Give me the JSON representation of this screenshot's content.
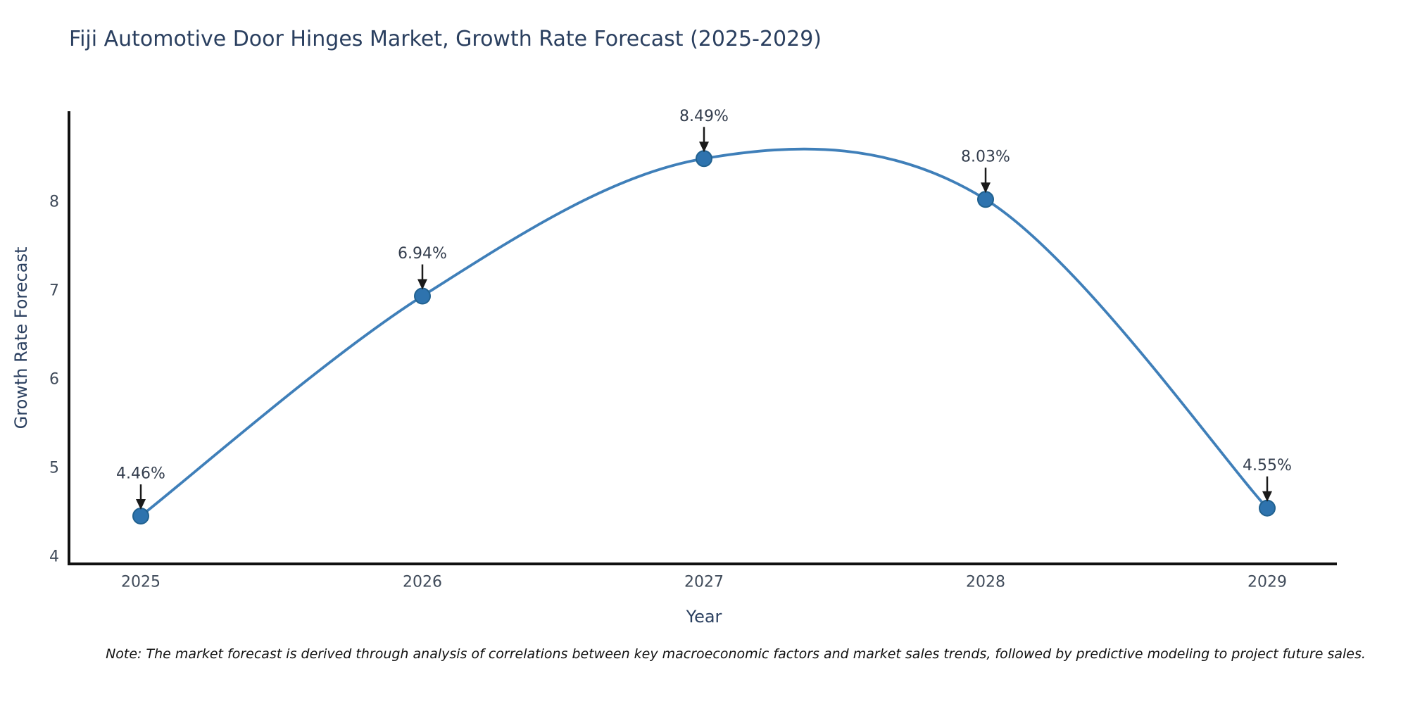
{
  "footnote": "Note: The market forecast is derived through analysis of correlations between key macroeconomic factors and market sales trends, followed by predictive modeling to project future sales.",
  "chart_data": {
    "type": "line",
    "title": "Fiji Automotive Door Hinges Market, Growth Rate Forecast (2025-2029)",
    "xlabel": "Year",
    "ylabel": "Growth Rate Forecast",
    "categories": [
      "2025",
      "2026",
      "2027",
      "2028",
      "2029"
    ],
    "values": [
      4.46,
      6.94,
      8.49,
      8.03,
      4.55
    ],
    "point_labels": [
      "4.46%",
      "6.94%",
      "8.49%",
      "8.03%",
      "4.55%"
    ],
    "series": [
      {
        "name": "Growth Rate Forecast",
        "values": [
          4.46,
          6.94,
          8.49,
          8.03,
          4.55
        ]
      }
    ],
    "yticks": [
      8,
      7,
      6,
      5,
      4
    ],
    "ylim": [
      4,
      9.1
    ],
    "line_shape": "spline",
    "grid": false,
    "legend": "none",
    "annotation_style": "value label above each point with a black arrow pointing down to the marker"
  },
  "colors": {
    "line": "#3f7fb9",
    "marker": "#2e73ae",
    "marker_edge": "#21618f",
    "axis_line": "#111111",
    "arrow": "#1a1a1a",
    "title_text": "#2a3f5f",
    "axis_title_text": "#2a3f5f",
    "tick_text": "#404b5a",
    "annotation_text": "#333d4d",
    "note_text": "#111111",
    "background": "#ffffff"
  }
}
